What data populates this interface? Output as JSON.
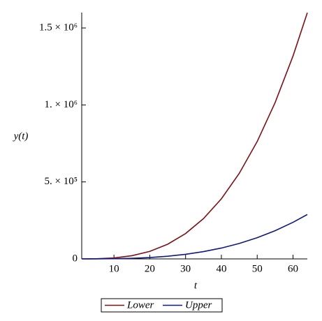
{
  "chart_data": {
    "type": "line",
    "xlabel": "t",
    "ylabel": "y(t)",
    "x": [
      1,
      5,
      10,
      15,
      20,
      25,
      30,
      35,
      40,
      45,
      50,
      55,
      60,
      64
    ],
    "series": [
      {
        "name": "Lower",
        "color": "#7f0f17",
        "values": [
          6,
          763,
          6100,
          20588,
          48800,
          95313,
          164700,
          261538,
          390400,
          555863,
          762500,
          1014888,
          1317600,
          1599078
        ]
      },
      {
        "name": "Upper",
        "color": "#0f1a7f",
        "values": [
          1,
          138,
          1100,
          3713,
          8800,
          17188,
          29700,
          47163,
          70400,
          100238,
          137500,
          183013,
          237600,
          288358
        ]
      }
    ],
    "xlim": [
      1,
      64
    ],
    "ylim": [
      0,
      1600000
    ],
    "xticks": [
      10,
      20,
      30,
      40,
      50,
      60
    ],
    "yticks": [
      0,
      {
        "value": 500000,
        "label": "5. × 10⁵"
      },
      {
        "value": 1000000,
        "label": "1. × 10⁶"
      },
      {
        "value": 1500000,
        "label": "1.5 × 10⁶"
      }
    ],
    "legend": "bottom"
  }
}
